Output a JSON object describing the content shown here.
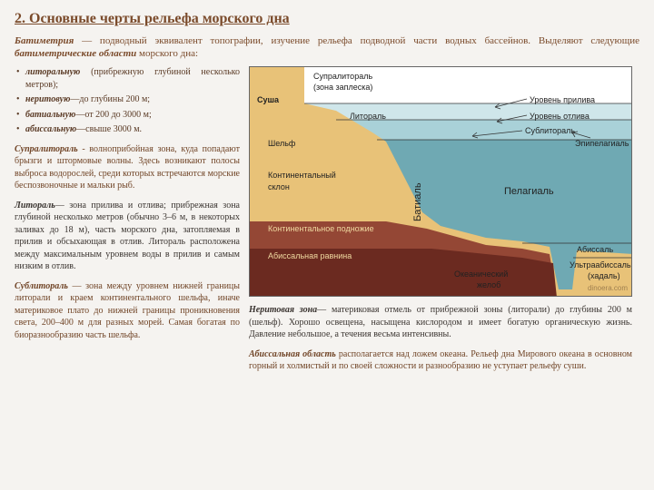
{
  "title": "2. Основные черты рельефа морского дна",
  "intro_html": "<em>Батиметрия</em> — подводный эквивалент топографии, изучение рельефа подводной части водных бассейнов. Выделяют следующие <em>батиметрические области</em> морского дна:",
  "bullets": [
    "<em>литоральную</em> (прибрежную глубиной несколько метров);",
    "<em>неритовую</em>—до глубины 200 м;",
    "<em>батиальную</em>—от 200 до 3000 м;",
    "<em>абиссальную</em>—свыше 3000 м."
  ],
  "paras_left": [
    {
      "lead": "Супралитораль",
      "cls": "brown",
      "text": " - волноприбойная зона, куда попадают брызги и штормовые волны. Здесь возникают полосы выброса водорослей, среди которых встречаются морские беспозвоночные и мальки рыб."
    },
    {
      "lead": "Литораль",
      "cls": "dark",
      "text": "— зона прилива и отлива; прибрежная зона глубиной несколько метров (обычно 3–6 м, в некоторых заливах до 18 м), часть морского дна, затопляемая в прилив и обсыхающая в отлив. Литораль расположена между максимальным уровнем воды в прилив и самым низким в отлив."
    },
    {
      "lead": "Сублитораль",
      "cls": "brown",
      "text": " — зона между уровнем нижней границы литорали и краем континентального шельфа, иначе материковое плато до нижней границы проникновения света, 200–400 м для разных морей. Самая богатая по биоразнообразию часть шельфа."
    }
  ],
  "paras_right": [
    {
      "lead": "Неритовая зона",
      "cls": "dark",
      "text": "— материковая отмель от прибрежной зоны (литорали) до глубины 200 м (шельф). Хорошо освещена, насыщена кислородом и имеет богатую органическую жизнь. Давление небольшое, а течения весьма интенсивны."
    },
    {
      "lead": "Абиссальная область",
      "cls": "brown",
      "text": " располагается над ложем океана. Рельеф дна Мирового океана в основном горный и холмистый и по своей сложности и разнообразию не уступает рельефу суши."
    }
  ],
  "diagram": {
    "colors": {
      "sky": "#ffffff",
      "sea_light": "#cfe6ea",
      "sea_mid": "#a9d1d8",
      "sea_deep": "#6fa9b3",
      "land": "#e8c278",
      "deep_red": "#8b3a2e",
      "line": "#333333"
    },
    "labels": {
      "supralitoral": "Супралитораль",
      "zaplesk": "(зона заплеска)",
      "sushа": "Суша",
      "litoral": "Литораль",
      "shelf": "Шельф",
      "kont_slope": "Континентальный склон",
      "kont_foot": "Континентальное подножие",
      "abys_plain": "Абиссальная равнина",
      "ocean_trench": "Океанический желоб",
      "level_tide": "Уровень прилива",
      "level_ebb": "Уровень отлива",
      "sublitoral": "Сублитораль",
      "epipelagial": "Эпипелагиаль",
      "pelagial": "Пелагиаль",
      "abyssal": "Абиссаль",
      "ultra": "Ультраабиссаль",
      "hadal": "(хадаль)",
      "batial": "Батиаль",
      "credit": "dinoera.com"
    }
  }
}
